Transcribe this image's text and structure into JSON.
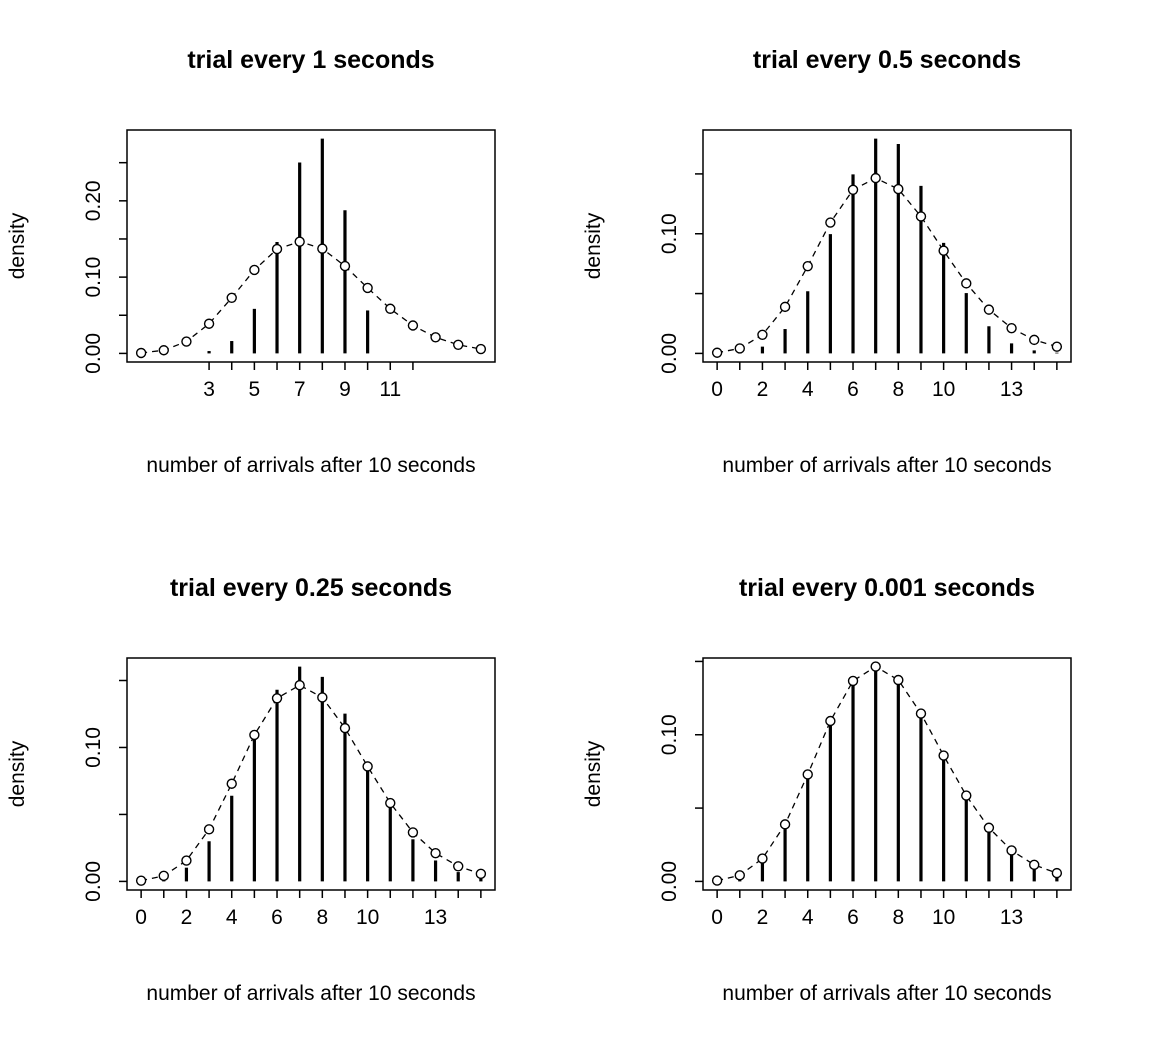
{
  "figure": {
    "background_color": "#ffffff",
    "foreground_color": "#000000",
    "layout": "2x2 grid of R-style stem plots comparing binomial pmf (vertical bars) to Poisson pmf (open circles with dashed line)"
  },
  "chart_data": [
    {
      "type": "stem",
      "title": "trial every 1 seconds",
      "xlabel": "number of arrivals after 10 seconds",
      "ylabel": "density",
      "x": [
        0,
        1,
        2,
        3,
        4,
        5,
        6,
        7,
        8,
        9,
        10,
        11,
        12,
        13,
        14,
        15
      ],
      "series": [
        {
          "name": "binomial-pmf-bars",
          "values": [
            0.0,
            3e-05,
            0.00039,
            0.00309,
            0.01622,
            0.0584,
            0.146,
            0.25028,
            0.28157,
            0.18771,
            0.05631,
            0,
            0,
            0,
            0,
            0
          ]
        },
        {
          "name": "poisson-pmf-circles-dashed",
          "values": [
            0.00055,
            0.00415,
            0.01556,
            0.03889,
            0.07292,
            0.10938,
            0.13672,
            0.14648,
            0.13733,
            0.11444,
            0.08583,
            0.05852,
            0.03658,
            0.0211,
            0.0113,
            0.00565
          ]
        }
      ],
      "x_ticks": [
        3,
        4,
        5,
        6,
        7,
        8,
        9,
        10,
        11,
        12
      ],
      "x_tick_labels": [
        {
          "at": 3,
          "label": "3"
        },
        {
          "at": 5,
          "label": "5"
        },
        {
          "at": 7,
          "label": "7"
        },
        {
          "at": 9,
          "label": "9"
        },
        {
          "at": 11,
          "label": "11"
        }
      ],
      "y_ticks": [
        0,
        0.05,
        0.1,
        0.15,
        0.2,
        0.25
      ],
      "y_tick_labels": [
        {
          "at": 0,
          "label": "0.00"
        },
        {
          "at": 0.1,
          "label": "0.10"
        },
        {
          "at": 0.2,
          "label": "0.20"
        }
      ],
      "xlim": [
        -0.624,
        15.624
      ],
      "ylim": [
        0,
        0.28157
      ],
      "grid": false,
      "legend": "none"
    },
    {
      "type": "stem",
      "title": "trial every 0.5 seconds",
      "xlabel": "number of arrivals after 10 seconds",
      "ylabel": "density",
      "x": [
        0,
        1,
        2,
        3,
        4,
        5,
        6,
        7,
        8,
        9,
        10,
        11,
        12,
        13,
        14,
        15
      ],
      "series": [
        {
          "name": "binomial-pmf-bars",
          "values": [
            8e-05,
            0.00099,
            0.00566,
            0.02037,
            0.05194,
            0.09973,
            0.14959,
            0.17951,
            0.17502,
            0.14002,
            0.09241,
            0.05041,
            0.02268,
            0.00838,
            0.00251,
            0.0006
          ]
        },
        {
          "name": "poisson-pmf-circles-dashed",
          "values": [
            0.00055,
            0.00415,
            0.01556,
            0.03889,
            0.07292,
            0.10938,
            0.13672,
            0.14648,
            0.13733,
            0.11444,
            0.08583,
            0.05852,
            0.03658,
            0.0211,
            0.0113,
            0.00565
          ]
        }
      ],
      "x_ticks": [
        0,
        1,
        2,
        3,
        4,
        5,
        6,
        7,
        8,
        9,
        10,
        11,
        12,
        13,
        14,
        15
      ],
      "x_tick_labels": [
        {
          "at": 0,
          "label": "0"
        },
        {
          "at": 2,
          "label": "2"
        },
        {
          "at": 4,
          "label": "4"
        },
        {
          "at": 6,
          "label": "6"
        },
        {
          "at": 8,
          "label": "8"
        },
        {
          "at": 10,
          "label": "10"
        },
        {
          "at": 13,
          "label": "13"
        }
      ],
      "y_ticks": [
        0,
        0.05,
        0.1,
        0.15
      ],
      "y_tick_labels": [
        {
          "at": 0,
          "label": "0.00"
        },
        {
          "at": 0.1,
          "label": "0.10"
        }
      ],
      "xlim": [
        -0.624,
        15.624
      ],
      "ylim": [
        0,
        0.17951
      ],
      "grid": false,
      "legend": "none"
    },
    {
      "type": "stem",
      "title": "trial every 0.25 seconds",
      "xlabel": "number of arrivals after 10 seconds",
      "ylabel": "density",
      "x": [
        0,
        1,
        2,
        3,
        4,
        5,
        6,
        7,
        8,
        9,
        10,
        11,
        12,
        13,
        14,
        15
      ],
      "series": [
        {
          "name": "binomial-pmf-bars",
          "values": [
            0.00025,
            0.00228,
            0.01025,
            0.02997,
            0.06397,
            0.10629,
            0.14308,
            0.16038,
            0.15267,
            0.12527,
            0.08962,
            0.0564,
            0.03145,
            0.01563,
            0.00696,
            0.00278
          ]
        },
        {
          "name": "poisson-pmf-circles-dashed",
          "values": [
            0.00055,
            0.00415,
            0.01556,
            0.03889,
            0.07292,
            0.10938,
            0.13672,
            0.14648,
            0.13733,
            0.11444,
            0.08583,
            0.05852,
            0.03658,
            0.0211,
            0.0113,
            0.00565
          ]
        }
      ],
      "x_ticks": [
        0,
        1,
        2,
        3,
        4,
        5,
        6,
        7,
        8,
        9,
        10,
        11,
        12,
        13,
        14,
        15
      ],
      "x_tick_labels": [
        {
          "at": 0,
          "label": "0"
        },
        {
          "at": 2,
          "label": "2"
        },
        {
          "at": 4,
          "label": "4"
        },
        {
          "at": 6,
          "label": "6"
        },
        {
          "at": 8,
          "label": "8"
        },
        {
          "at": 10,
          "label": "10"
        },
        {
          "at": 13,
          "label": "13"
        }
      ],
      "y_ticks": [
        0,
        0.05,
        0.1,
        0.15
      ],
      "y_tick_labels": [
        {
          "at": 0,
          "label": "0.00"
        },
        {
          "at": 0.1,
          "label": "0.10"
        }
      ],
      "xlim": [
        -0.624,
        15.624
      ],
      "ylim": [
        0,
        0.16038
      ],
      "grid": false,
      "legend": "none"
    },
    {
      "type": "stem",
      "title": "trial every 0.001 seconds",
      "xlabel": "number of arrivals after 10 seconds",
      "ylabel": "density",
      "x": [
        0,
        1,
        2,
        3,
        4,
        5,
        6,
        7,
        8,
        9,
        10,
        11,
        12,
        13,
        14,
        15
      ],
      "series": [
        {
          "name": "binomial-pmf-bars",
          "values": [
            0.00055,
            0.00415,
            0.01556,
            0.03889,
            0.07292,
            0.10938,
            0.13672,
            0.14648,
            0.13733,
            0.11444,
            0.08583,
            0.05852,
            0.03658,
            0.0211,
            0.0113,
            0.00565
          ]
        },
        {
          "name": "poisson-pmf-circles-dashed",
          "values": [
            0.00055,
            0.00415,
            0.01556,
            0.03889,
            0.07292,
            0.10938,
            0.13672,
            0.14648,
            0.13733,
            0.11444,
            0.08583,
            0.05852,
            0.03658,
            0.0211,
            0.0113,
            0.00565
          ]
        }
      ],
      "x_ticks": [
        0,
        1,
        2,
        3,
        4,
        5,
        6,
        7,
        8,
        9,
        10,
        11,
        12,
        13,
        14,
        15
      ],
      "x_tick_labels": [
        {
          "at": 0,
          "label": "0"
        },
        {
          "at": 2,
          "label": "2"
        },
        {
          "at": 4,
          "label": "4"
        },
        {
          "at": 6,
          "label": "6"
        },
        {
          "at": 8,
          "label": "8"
        },
        {
          "at": 10,
          "label": "10"
        },
        {
          "at": 13,
          "label": "13"
        }
      ],
      "y_ticks": [
        0,
        0.05,
        0.1,
        0.15
      ],
      "y_tick_labels": [
        {
          "at": 0,
          "label": "0.00"
        },
        {
          "at": 0.1,
          "label": "0.10"
        }
      ],
      "xlim": [
        -0.624,
        15.624
      ],
      "ylim": [
        0,
        0.14648
      ],
      "grid": false,
      "legend": "none"
    }
  ]
}
